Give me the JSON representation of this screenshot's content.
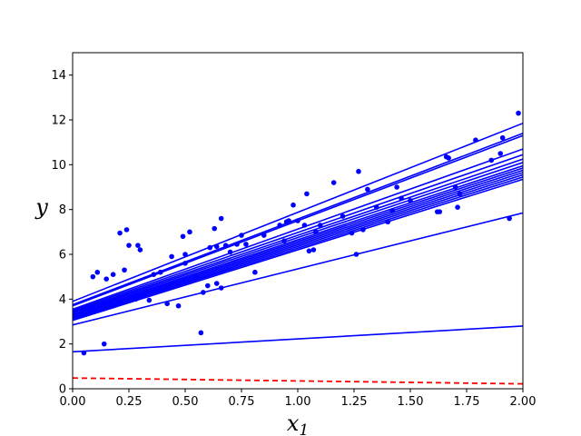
{
  "chart_data": {
    "type": "scatter",
    "xlabel_base": "x",
    "xlabel_sub": "1",
    "ylabel": "y",
    "xlim": [
      0,
      2
    ],
    "ylim": [
      0,
      15
    ],
    "xticks": [
      "0.00",
      "0.25",
      "0.50",
      "0.75",
      "1.00",
      "1.25",
      "1.50",
      "1.75",
      "2.00"
    ],
    "yticks": [
      "0",
      "2",
      "4",
      "6",
      "8",
      "10",
      "12",
      "14"
    ],
    "grid": false,
    "colors": {
      "points": "#0000ff",
      "lines": "#0000ff",
      "dashed_line": "#ff0000"
    },
    "points": [
      [
        0.05,
        1.6
      ],
      [
        0.09,
        5.0
      ],
      [
        0.11,
        5.2
      ],
      [
        0.14,
        2.0
      ],
      [
        0.15,
        4.9
      ],
      [
        0.18,
        5.1
      ],
      [
        0.21,
        6.95
      ],
      [
        0.23,
        5.3
      ],
      [
        0.24,
        7.1
      ],
      [
        0.25,
        6.4
      ],
      [
        0.28,
        4.0
      ],
      [
        0.29,
        6.4
      ],
      [
        0.3,
        6.2
      ],
      [
        0.34,
        3.95
      ],
      [
        0.36,
        5.1
      ],
      [
        0.39,
        5.2
      ],
      [
        0.42,
        3.8
      ],
      [
        0.47,
        3.7
      ],
      [
        0.49,
        6.8
      ],
      [
        0.5,
        5.6
      ],
      [
        0.5,
        6.0
      ],
      [
        0.52,
        7.0
      ],
      [
        0.55,
        5.0
      ],
      [
        0.57,
        2.5
      ],
      [
        0.58,
        4.3
      ],
      [
        0.6,
        4.6
      ],
      [
        0.61,
        6.3
      ],
      [
        0.63,
        7.15
      ],
      [
        0.64,
        6.35
      ],
      [
        0.64,
        4.7
      ],
      [
        0.66,
        7.6
      ],
      [
        0.66,
        4.5
      ],
      [
        0.68,
        6.4
      ],
      [
        0.7,
        6.1
      ],
      [
        0.73,
        6.45
      ],
      [
        0.75,
        6.85
      ],
      [
        0.77,
        6.45
      ],
      [
        0.81,
        5.2
      ],
      [
        0.85,
        6.85
      ],
      [
        0.92,
        7.3
      ],
      [
        0.95,
        7.45
      ],
      [
        0.96,
        7.5
      ],
      [
        0.98,
        8.2
      ],
      [
        1.0,
        7.5
      ],
      [
        1.03,
        7.3
      ],
      [
        1.04,
        8.7
      ],
      [
        1.05,
        6.15
      ],
      [
        1.07,
        6.2
      ],
      [
        1.08,
        7.0
      ],
      [
        1.1,
        7.3
      ],
      [
        1.16,
        9.2
      ],
      [
        1.24,
        6.95
      ],
      [
        1.26,
        6.0
      ],
      [
        1.27,
        9.7
      ],
      [
        1.29,
        7.1
      ],
      [
        1.31,
        8.9
      ],
      [
        1.4,
        7.45
      ],
      [
        1.42,
        7.95
      ],
      [
        1.44,
        9.0
      ],
      [
        1.46,
        8.5
      ],
      [
        1.5,
        8.4
      ],
      [
        1.62,
        7.9
      ],
      [
        1.63,
        7.9
      ],
      [
        1.66,
        10.35
      ],
      [
        1.67,
        10.3
      ],
      [
        1.7,
        9.0
      ],
      [
        1.71,
        8.1
      ],
      [
        1.72,
        8.7
      ],
      [
        1.79,
        11.1
      ],
      [
        1.86,
        10.2
      ],
      [
        1.9,
        10.5
      ],
      [
        1.91,
        11.2
      ],
      [
        1.94,
        7.6
      ],
      [
        1.98,
        12.3
      ],
      [
        0.94,
        6.6
      ],
      [
        1.2,
        7.7
      ],
      [
        1.35,
        8.1
      ],
      [
        0.44,
        5.9
      ]
    ],
    "lines": [
      [
        0.0,
        0.48,
        2.0,
        0.22,
        "dashed"
      ],
      [
        0.0,
        1.65,
        2.0,
        2.8,
        "solid"
      ],
      [
        0.0,
        2.85,
        2.0,
        7.85,
        "solid"
      ],
      [
        0.0,
        3.05,
        2.0,
        9.35,
        "solid"
      ],
      [
        0.0,
        3.1,
        2.0,
        9.45,
        "solid"
      ],
      [
        0.0,
        3.15,
        2.0,
        9.55,
        "solid"
      ],
      [
        0.0,
        3.2,
        2.0,
        9.65,
        "solid"
      ],
      [
        0.0,
        3.25,
        2.0,
        9.75,
        "solid"
      ],
      [
        0.0,
        3.3,
        2.0,
        9.85,
        "solid"
      ],
      [
        0.0,
        3.35,
        2.0,
        9.95,
        "solid"
      ],
      [
        0.0,
        3.4,
        2.0,
        10.1,
        "solid"
      ],
      [
        0.0,
        3.45,
        2.0,
        10.25,
        "solid"
      ],
      [
        0.0,
        3.5,
        2.0,
        10.45,
        "solid"
      ],
      [
        0.0,
        3.55,
        2.0,
        10.7,
        "solid"
      ],
      [
        0.0,
        3.7,
        2.0,
        11.3,
        "solid"
      ],
      [
        0.0,
        3.75,
        2.0,
        11.4,
        "solid"
      ],
      [
        0.0,
        3.9,
        2.0,
        11.85,
        "solid"
      ]
    ]
  }
}
